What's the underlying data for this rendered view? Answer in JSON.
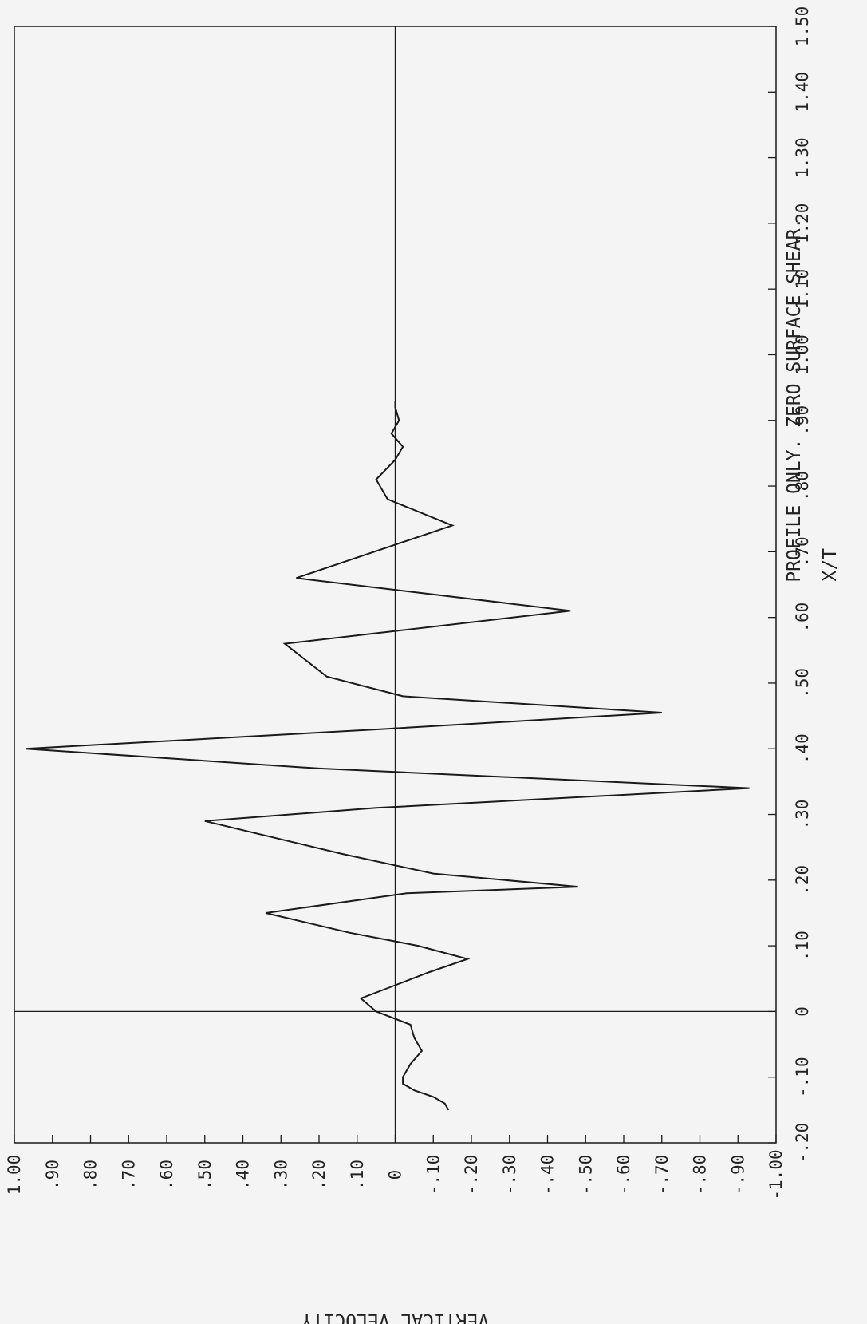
{
  "chart_data": {
    "type": "line",
    "title": "PROFILE ONLY. ZERO SURFACE SHEAR.",
    "xlabel": "X/T",
    "ylabel": "VERTICAL VELOCITY",
    "xlim": [
      -0.2,
      1.5
    ],
    "ylim": [
      -1.0,
      1.0
    ],
    "grid": false,
    "orientation": "rotated-90-counterclockwise",
    "x_ticks": [
      -0.2,
      -0.1,
      0,
      0.1,
      0.2,
      0.3,
      0.4,
      0.5,
      0.6,
      0.7,
      0.8,
      0.9,
      1.0,
      1.1,
      1.2,
      1.3,
      1.4,
      1.5
    ],
    "x_tick_labels": [
      "-.20",
      "-.10",
      "0",
      ".10",
      ".20",
      ".30",
      ".40",
      ".50",
      ".60",
      ".70",
      ".80",
      ".90",
      "1.00",
      "1.10",
      "1.20",
      "1.30",
      "1.40",
      "1.50"
    ],
    "y_ticks": [
      1.0,
      0.9,
      0.8,
      0.7,
      0.6,
      0.5,
      0.4,
      0.3,
      0.2,
      0.1,
      0,
      -0.1,
      -0.2,
      -0.3,
      -0.4,
      -0.5,
      -0.6,
      -0.7,
      -0.8,
      -0.9,
      -1.0
    ],
    "y_tick_labels": [
      "1.00",
      ".90",
      ".80",
      ".70",
      ".60",
      ".50",
      ".40",
      ".30",
      ".20",
      ".10",
      "0",
      "-.10",
      "-.20",
      "-.30",
      "-.40",
      "-.50",
      "-.60",
      "-.70",
      "-.80",
      "-.90",
      "-1.00"
    ],
    "series": [
      {
        "x": [
          -0.15,
          -0.14,
          -0.13,
          -0.12,
          -0.11,
          -0.1,
          -0.08,
          -0.06,
          -0.04,
          -0.02,
          0.0,
          0.02,
          0.04,
          0.06,
          0.08,
          0.1,
          0.12,
          0.15,
          0.18,
          0.19,
          0.21,
          0.24,
          0.29,
          0.31,
          0.34,
          0.37,
          0.4,
          0.43,
          0.455,
          0.48,
          0.51,
          0.56,
          0.61,
          0.66,
          0.74,
          0.78,
          0.81,
          0.84,
          0.86,
          0.88,
          0.9,
          0.92,
          0.93
        ],
        "y": [
          -0.14,
          -0.13,
          -0.1,
          -0.05,
          -0.02,
          -0.02,
          -0.04,
          -0.07,
          -0.05,
          -0.04,
          0.05,
          0.09,
          0.0,
          -0.09,
          -0.19,
          -0.06,
          0.12,
          0.34,
          -0.03,
          -0.48,
          -0.1,
          0.14,
          0.5,
          0.05,
          -0.93,
          0.2,
          0.97,
          0.03,
          -0.7,
          -0.02,
          0.18,
          0.29,
          -0.46,
          0.26,
          -0.15,
          0.02,
          0.05,
          0.0,
          -0.02,
          0.01,
          -0.01,
          0.0,
          0.0
        ]
      }
    ]
  },
  "colors": {
    "background": "#f4f4f4",
    "ink": "#1a1a1a"
  }
}
